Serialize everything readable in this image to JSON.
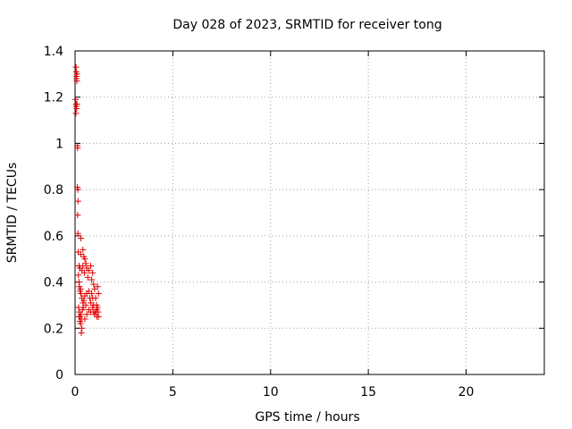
{
  "chart_data": {
    "type": "scatter",
    "title": "Day 028 of 2023, SRMTID for receiver tong",
    "xlabel": "GPS time / hours",
    "ylabel": "SRMTID / TECUs",
    "xlim": [
      0,
      24
    ],
    "ylim": [
      0,
      1.4
    ],
    "x_ticks": [
      0,
      5,
      10,
      15,
      20
    ],
    "y_ticks": [
      0,
      0.2,
      0.4,
      0.6,
      0.8,
      1,
      1.2,
      1.4
    ],
    "x_tick_labels": [
      "0",
      "5",
      "10",
      "15",
      "20"
    ],
    "y_tick_labels": [
      "0",
      "0.2",
      "0.4",
      "0.6",
      "0.8",
      "1",
      "1.2",
      "1.4"
    ],
    "grid": true,
    "marker": "+",
    "series": [
      {
        "color": "#e00000",
        "points": [
          [
            0.05,
            1.33
          ],
          [
            0.06,
            1.31
          ],
          [
            0.07,
            1.29
          ],
          [
            0.08,
            1.28
          ],
          [
            0.1,
            1.3
          ],
          [
            0.09,
            1.27
          ],
          [
            0.03,
            1.19
          ],
          [
            0.05,
            1.17
          ],
          [
            0.06,
            1.16
          ],
          [
            0.08,
            1.15
          ],
          [
            0.04,
            1.13
          ],
          [
            0.1,
            1.17
          ],
          [
            0.12,
            0.99
          ],
          [
            0.13,
            0.98
          ],
          [
            0.12,
            0.81
          ],
          [
            0.14,
            0.8
          ],
          [
            0.15,
            0.75
          ],
          [
            0.13,
            0.69
          ],
          [
            0.15,
            0.61
          ],
          [
            0.3,
            0.59
          ],
          [
            0.16,
            0.53
          ],
          [
            0.3,
            0.52
          ],
          [
            0.4,
            0.54
          ],
          [
            0.45,
            0.51
          ],
          [
            0.5,
            0.5
          ],
          [
            0.55,
            0.48
          ],
          [
            0.2,
            0.47
          ],
          [
            0.25,
            0.46
          ],
          [
            0.35,
            0.45
          ],
          [
            0.4,
            0.47
          ],
          [
            0.48,
            0.44
          ],
          [
            0.6,
            0.46
          ],
          [
            0.7,
            0.45
          ],
          [
            0.8,
            0.47
          ],
          [
            0.9,
            0.44
          ],
          [
            0.65,
            0.42
          ],
          [
            0.85,
            0.41
          ],
          [
            0.95,
            0.39
          ],
          [
            0.17,
            0.43
          ],
          [
            0.2,
            0.4
          ],
          [
            0.22,
            0.38
          ],
          [
            0.25,
            0.36
          ],
          [
            0.28,
            0.37
          ],
          [
            0.3,
            0.35
          ],
          [
            0.35,
            0.33
          ],
          [
            0.4,
            0.31
          ],
          [
            0.45,
            0.32
          ],
          [
            0.5,
            0.34
          ],
          [
            0.55,
            0.3
          ],
          [
            0.6,
            0.35
          ],
          [
            0.7,
            0.36
          ],
          [
            0.75,
            0.33
          ],
          [
            0.8,
            0.31
          ],
          [
            0.85,
            0.35
          ],
          [
            0.9,
            0.33
          ],
          [
            0.95,
            0.3
          ],
          [
            1.0,
            0.37
          ],
          [
            1.05,
            0.33
          ],
          [
            1.1,
            0.3
          ],
          [
            1.15,
            0.38
          ],
          [
            1.2,
            0.35
          ],
          [
            1.1,
            0.28
          ],
          [
            0.18,
            0.29
          ],
          [
            0.22,
            0.27
          ],
          [
            0.26,
            0.25
          ],
          [
            0.3,
            0.26
          ],
          [
            0.33,
            0.24
          ],
          [
            0.38,
            0.28
          ],
          [
            0.42,
            0.29
          ],
          [
            0.6,
            0.26
          ],
          [
            0.7,
            0.28
          ],
          [
            0.8,
            0.27
          ],
          [
            0.9,
            0.29
          ],
          [
            1.0,
            0.26
          ],
          [
            1.05,
            0.27
          ],
          [
            1.12,
            0.25
          ],
          [
            1.18,
            0.27
          ],
          [
            1.2,
            0.25
          ],
          [
            1.15,
            0.29
          ],
          [
            0.95,
            0.27
          ],
          [
            0.2,
            0.25
          ],
          [
            0.28,
            0.22
          ],
          [
            0.35,
            0.2
          ],
          [
            0.32,
            0.18
          ],
          [
            0.25,
            0.23
          ],
          [
            0.5,
            0.24
          ]
        ]
      }
    ]
  }
}
